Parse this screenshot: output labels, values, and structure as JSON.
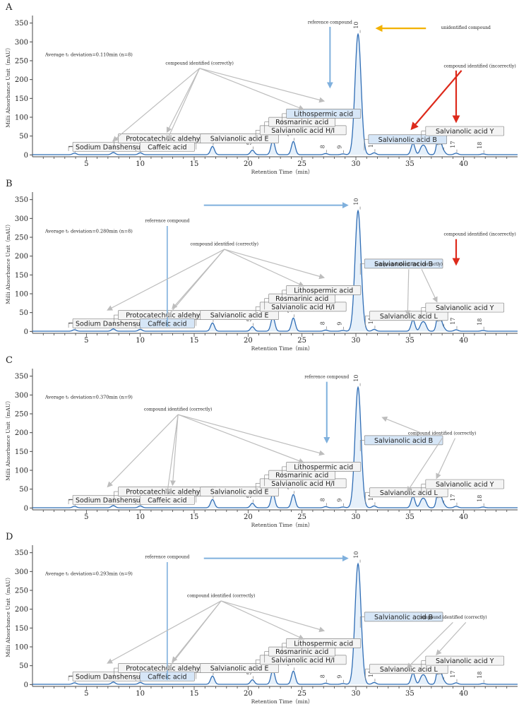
{
  "chart_data": [
    {
      "panel": "A",
      "type": "line",
      "xlabel": "Retention Time（min）",
      "ylabel": "Milli Absorbance Unit（mAU）",
      "xlim": [
        0,
        45
      ],
      "ylim": [
        -5,
        370
      ],
      "xticks": [
        5,
        10,
        15,
        20,
        25,
        30,
        35,
        40
      ],
      "yticks": [
        0,
        50,
        100,
        150,
        200,
        250,
        300,
        350
      ],
      "deviation_text": "Average tᵣ deviation=0.110min (n=8)",
      "peaks": [
        {
          "label": "1",
          "x": 3.9,
          "y": 4
        },
        {
          "label": "2",
          "x": 7.5,
          "y": 6
        },
        {
          "label": "3",
          "x": 10.0,
          "y": 5
        },
        {
          "label": "4",
          "x": 16.7,
          "y": 22
        },
        {
          "label": "5",
          "x": 20.4,
          "y": 12
        },
        {
          "label": "6",
          "x": 22.3,
          "y": 38
        },
        {
          "label": "7",
          "x": 24.2,
          "y": 35
        },
        {
          "label": "8",
          "x": 27.2,
          "y": 3
        },
        {
          "label": "9",
          "x": 28.8,
          "y": 2
        },
        {
          "label": "10",
          "x": 30.2,
          "y": 320
        },
        {
          "label": "11",
          "x": 31.7,
          "y": 5
        },
        {
          "label": "12",
          "x": 35.3,
          "y": 30
        },
        {
          "label": "13",
          "x": 36.1,
          "y": 18
        },
        {
          "label": "14",
          "x": 36.4,
          "y": 18
        },
        {
          "label": "15",
          "x": 37.7,
          "y": 62
        },
        {
          "label": "16",
          "x": 38.1,
          "y": 10
        },
        {
          "label": "17",
          "x": 39.3,
          "y": 4
        },
        {
          "label": "18",
          "x": 41.8,
          "y": 2
        }
      ],
      "peak_label_strings": [
        "1",
        "2",
        "3",
        "4",
        "5",
        "6",
        "7",
        "8",
        "9",
        "10",
        "11",
        "1",
        "16",
        "17",
        "18"
      ],
      "compound_labels": [
        "Sodium Danshensu",
        "Protocatechuic aldehyde",
        "Caffeic acid",
        "Salvianolic acid E",
        "Salvianolic acid H/I",
        "Rosmarinic acid",
        "Lithospermic acid",
        "Salvianolic acid B",
        "Salvianolic acid Y"
      ],
      "annotations": [
        "reference compound",
        "unidentified compound",
        "compound identified (correctly)",
        "compound identified (incorrectly)"
      ],
      "colors": {
        "trace": "#2f6db5",
        "reference_arrow": "#7fb0dd",
        "identified_arrow": "#bdbdbd",
        "incorrect_arrow": "#dd2a1b",
        "unidentified_arrow": "#f2b100",
        "highlight_box": "#d6e6f7"
      }
    },
    {
      "panel": "B",
      "type": "line",
      "xlabel": "Retention Time（min）",
      "ylabel": "Milli Absorbance Unit（mAU）",
      "xlim": [
        0,
        45
      ],
      "ylim": [
        -5,
        370
      ],
      "xticks": [
        5,
        10,
        15,
        20,
        25,
        30,
        35,
        40
      ],
      "yticks": [
        0,
        50,
        100,
        150,
        200,
        250,
        300,
        350
      ],
      "deviation_text": "Average tᵣ deviation=0.280min (n=8)",
      "peak_label_strings": [
        "1",
        "2",
        "3",
        "4",
        "5",
        "6",
        "7",
        "8",
        "9",
        "10",
        "11",
        "1",
        "16",
        "17",
        "18"
      ],
      "compound_labels": [
        "Sodium Danshensu",
        "Protocatechuic aldehyde",
        "Caffeic acid",
        "Salvianolic acid E",
        "Salvianolic acid H/I",
        "Rosmarinic acid",
        "Lithospermic acid",
        "Salvianolic acid B",
        "Salvianolic acid L",
        "Salvianolic acid Y"
      ],
      "annotations": [
        "reference compound",
        "compound identified (correctly)",
        "compound identified (correctly)",
        "compound identified (incorrectly)"
      ]
    },
    {
      "panel": "C",
      "type": "line",
      "xlabel": "Retention Time（min）",
      "ylabel": "Milli Absorbance Unit（mAU）",
      "xlim": [
        0,
        45
      ],
      "ylim": [
        -5,
        370
      ],
      "xticks": [
        5,
        10,
        15,
        20,
        25,
        30,
        35,
        40
      ],
      "yticks": [
        0,
        50,
        100,
        150,
        200,
        250,
        300,
        350
      ],
      "deviation_text": "Average tᵣ deviation=0.370min (n=9)",
      "peak_label_strings": [
        "1",
        "2",
        "3",
        "4",
        "5",
        "6",
        "7",
        "8",
        "9",
        "10",
        "11",
        "1",
        "16",
        "17",
        "18"
      ],
      "compound_labels": [
        "Sodium Danshensu",
        "Protocatechuic aldehyde",
        "Caffeic acid",
        "Salvianolic acid E",
        "Salvianolic acid H/I",
        "Rosmarinic acid",
        "Lithospermic acid",
        "Salvianolic acid B",
        "Salvianolic acid L",
        "Salvianolic acid Y"
      ],
      "annotations": [
        "reference compound",
        "compound identified (correctly)",
        "compound identified (correctly)"
      ]
    },
    {
      "panel": "D",
      "type": "line",
      "xlabel": "Retention Time（min）",
      "ylabel": "Milli Absorbance Unit（mAU）",
      "xlim": [
        0,
        45
      ],
      "ylim": [
        -5,
        370
      ],
      "xticks": [
        5,
        10,
        15,
        20,
        25,
        30,
        35,
        40
      ],
      "yticks": [
        0,
        50,
        100,
        150,
        200,
        250,
        300,
        350
      ],
      "deviation_text": "Average tᵣ deviation=0.293min (n=9)",
      "peak_label_strings": [
        "1",
        "2",
        "3",
        "4",
        "5",
        "6",
        "7",
        "8",
        "9",
        "10",
        "11",
        "1",
        "16",
        "17",
        "18"
      ],
      "compound_labels": [
        "Sodium Danshensu",
        "Protocatechuic aldehyde",
        "Caffeic acid",
        "Salvianolic acid E",
        "Salvianolic acid H/I",
        "Rosmarinic acid",
        "Lithospermic acid",
        "Salvianolic acid B",
        "Salvianolic acid L",
        "Salvianolic acid Y"
      ],
      "annotations": [
        "reference compound",
        "compound identified (correctly)",
        "compound identified (correctly)"
      ]
    }
  ]
}
